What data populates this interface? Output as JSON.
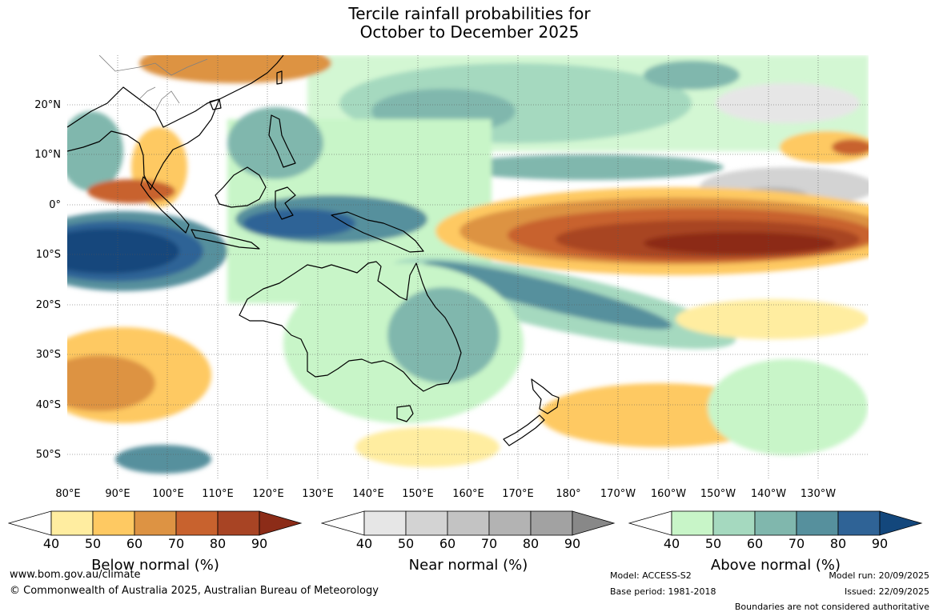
{
  "title": {
    "line1": "Tercile rainfall probabilities for",
    "line2": "October to December 2025"
  },
  "map": {
    "lat_labels": [
      "20°N",
      "10°N",
      "0°",
      "10°S",
      "20°S",
      "30°S",
      "40°S",
      "50°S"
    ],
    "lon_labels": [
      "80°E",
      "90°E",
      "100°E",
      "110°E",
      "120°E",
      "130°E",
      "140°E",
      "150°E",
      "160°E",
      "170°E",
      "180°",
      "170°W",
      "160°W",
      "150°W",
      "140°W",
      "130°W"
    ],
    "colors": {
      "coast": "#000000",
      "border": "#808080",
      "grid": "#555555"
    }
  },
  "legends": [
    {
      "title": "Below normal (%)",
      "ticks": [
        "40",
        "50",
        "60",
        "70",
        "80",
        "90"
      ],
      "colors": [
        "#ffeda0",
        "#fec962",
        "#dd9343",
        "#c8622e",
        "#a84424",
        "#8c2c18"
      ]
    },
    {
      "title": "Near normal (%)",
      "ticks": [
        "40",
        "50",
        "60",
        "70",
        "80",
        "90"
      ],
      "colors": [
        "#e6e6e6",
        "#d3d3d3",
        "#c3c3c3",
        "#b3b3b3",
        "#a2a2a2",
        "#888888"
      ]
    },
    {
      "title": "Above normal (%)",
      "ticks": [
        "40",
        "50",
        "60",
        "70",
        "80",
        "90"
      ],
      "colors": [
        "#c8f5c8",
        "#a5d9bf",
        "#80b7ad",
        "#56909d",
        "#2f6396",
        "#13477c"
      ]
    }
  ],
  "footer": {
    "url": "www.bom.gov.au/climate",
    "copyright": "© Commonwealth of Australia 2025, Australian Bureau of Meteorology",
    "model": "Model: ACCESS-S2",
    "base_period": "Base period: 1981-2018",
    "model_run": "Model run: 20/09/2025",
    "issued": "Issued: 22/09/2025",
    "disclaimer": "Boundaries are not considered authoritative"
  }
}
